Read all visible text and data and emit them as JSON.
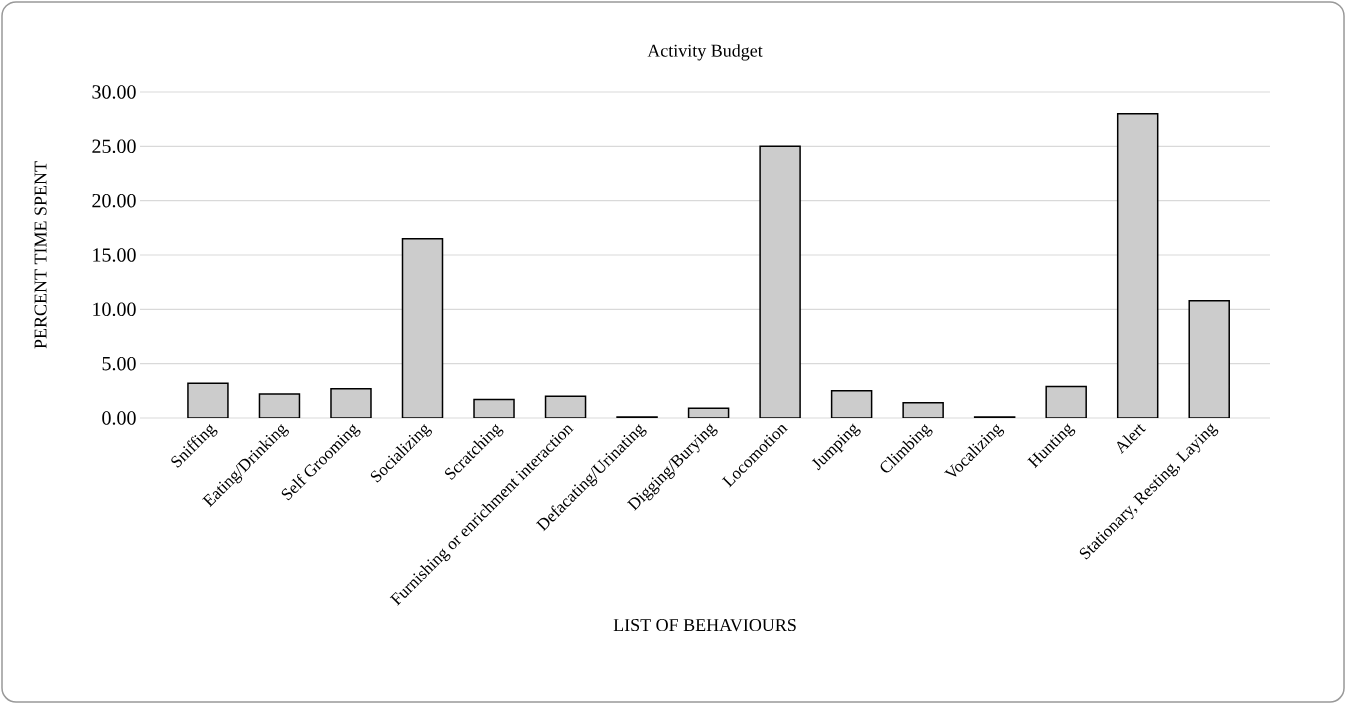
{
  "chart_data": {
    "type": "bar",
    "title": "Activity Budget",
    "xlabel": "LIST OF BEHAVIOURS",
    "ylabel": "PERCENT TIME SPENT",
    "categories": [
      "Sniffing",
      "Eating/Drinking",
      "Self Grooming",
      "Socializing",
      "Scratching",
      "Furnishing or enrichment interaction",
      "Defacating/Urinating",
      "Digging/Burying",
      "Locomotion",
      "Jumping",
      "Climbing",
      "Vocalizing",
      "Hunting",
      "Alert",
      "Stationary, Resting, Laying"
    ],
    "values": [
      3.2,
      2.2,
      2.7,
      16.5,
      1.7,
      2.0,
      0.1,
      0.9,
      25.0,
      2.5,
      1.4,
      0.1,
      2.9,
      28.0,
      10.8
    ],
    "color": "#cccccc",
    "ylim": [
      0,
      30
    ],
    "yticks": [
      {
        "value": 0,
        "label": "0.00"
      },
      {
        "value": 5,
        "label": "5.00"
      },
      {
        "value": 10,
        "label": "10.00"
      },
      {
        "value": 15,
        "label": "15.00"
      },
      {
        "value": 20,
        "label": "20.00"
      },
      {
        "value": 25,
        "label": "25.00"
      },
      {
        "value": 30,
        "label": "30.00"
      }
    ],
    "grid": "y"
  }
}
